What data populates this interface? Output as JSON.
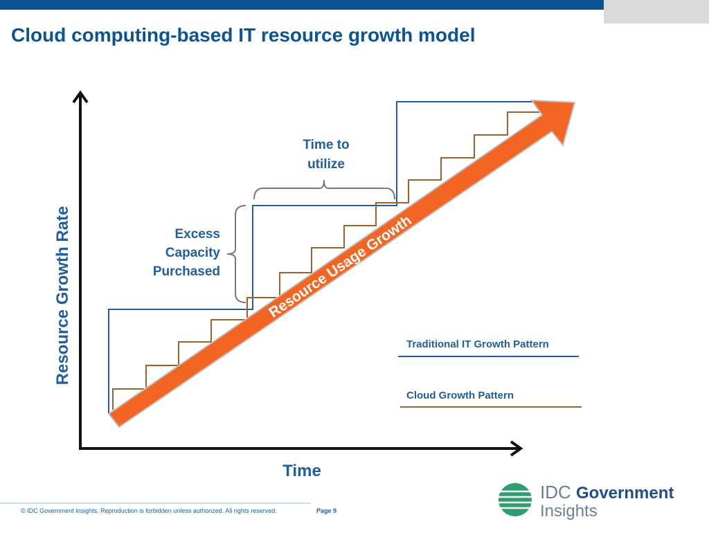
{
  "header": {
    "title": "Cloud computing-based IT resource growth model"
  },
  "diagram": {
    "y_axis_label": "Resource Growth Rate",
    "x_axis_label": "Time",
    "time_to_utilize": [
      "Time to",
      "utilize"
    ],
    "excess_capacity": [
      "Excess",
      "Capacity",
      "Purchased"
    ],
    "arrow_label": "Resource Usage Growth",
    "legend": [
      "Traditional IT Growth Pattern",
      "Cloud Growth Pattern"
    ]
  },
  "footer": {
    "copyright": "© IDC Government Insights. Reproduction is forbidden unless authorized. All rights reserved.",
    "page": "Page 9",
    "logo": [
      "IDC",
      "Government",
      "Insights"
    ]
  }
}
